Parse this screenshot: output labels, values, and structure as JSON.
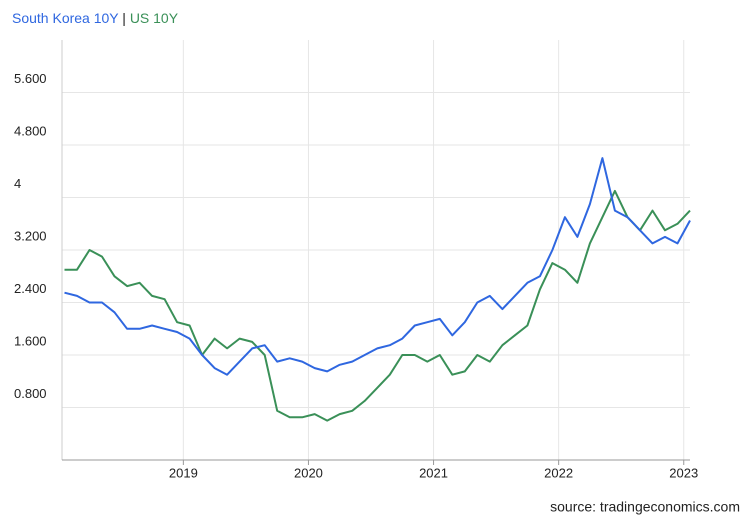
{
  "chart_data": {
    "type": "line",
    "legend_separator": "|",
    "source": "source: tradingeconomics.com",
    "x": [
      2018.05,
      2018.15,
      2018.25,
      2018.35,
      2018.45,
      2018.55,
      2018.65,
      2018.75,
      2018.85,
      2018.95,
      2019.05,
      2019.15,
      2019.25,
      2019.35,
      2019.45,
      2019.55,
      2019.65,
      2019.75,
      2019.85,
      2019.95,
      2020.05,
      2020.15,
      2020.25,
      2020.35,
      2020.45,
      2020.55,
      2020.65,
      2020.75,
      2020.85,
      2020.95,
      2021.05,
      2021.15,
      2021.25,
      2021.35,
      2021.45,
      2021.55,
      2021.65,
      2021.75,
      2021.85,
      2021.95,
      2022.05,
      2022.15,
      2022.25,
      2022.35,
      2022.45,
      2022.55,
      2022.65,
      2022.75,
      2022.85,
      2022.95,
      2023.05
    ],
    "series": [
      {
        "name": "South Korea 10Y",
        "color": "#2f67e0",
        "values": [
          2.55,
          2.5,
          2.4,
          2.4,
          2.25,
          2.0,
          2.0,
          2.05,
          2.0,
          1.95,
          1.85,
          1.6,
          1.4,
          1.3,
          1.5,
          1.7,
          1.75,
          1.5,
          1.55,
          1.5,
          1.4,
          1.35,
          1.45,
          1.5,
          1.6,
          1.7,
          1.75,
          1.85,
          2.05,
          2.1,
          2.15,
          1.9,
          2.1,
          2.4,
          2.5,
          2.3,
          2.5,
          2.7,
          2.8,
          3.2,
          3.7,
          3.4,
          3.9,
          4.6,
          3.8,
          3.7,
          3.5,
          3.3,
          3.4,
          3.3,
          3.65
        ]
      },
      {
        "name": "US 10Y",
        "color": "#3a9058",
        "values": [
          2.9,
          2.9,
          3.2,
          3.1,
          2.8,
          2.65,
          2.7,
          2.5,
          2.45,
          2.1,
          2.05,
          1.6,
          1.85,
          1.7,
          1.85,
          1.8,
          1.6,
          0.75,
          0.65,
          0.65,
          0.7,
          0.6,
          0.7,
          0.75,
          0.9,
          1.1,
          1.3,
          1.6,
          1.6,
          1.5,
          1.6,
          1.3,
          1.35,
          1.6,
          1.5,
          1.75,
          1.9,
          2.05,
          2.6,
          3.0,
          2.9,
          2.7,
          3.3,
          3.7,
          4.1,
          3.7,
          3.5,
          3.8,
          3.5,
          3.6,
          3.8
        ]
      }
    ],
    "xlim": [
      2018.03,
      2023.05
    ],
    "xticks": [
      2019,
      2020,
      2021,
      2022,
      2023
    ],
    "ylim": [
      0,
      6.4
    ],
    "yticks": [
      {
        "value": 0.8,
        "label": "0.800"
      },
      {
        "value": 1.6,
        "label": "1.600"
      },
      {
        "value": 2.4,
        "label": "2.400"
      },
      {
        "value": 3.2,
        "label": "3.200"
      },
      4,
      {
        "value": 4.8,
        "label": "4.800"
      },
      {
        "value": 5.6,
        "label": "5.600"
      }
    ],
    "grid": true
  }
}
